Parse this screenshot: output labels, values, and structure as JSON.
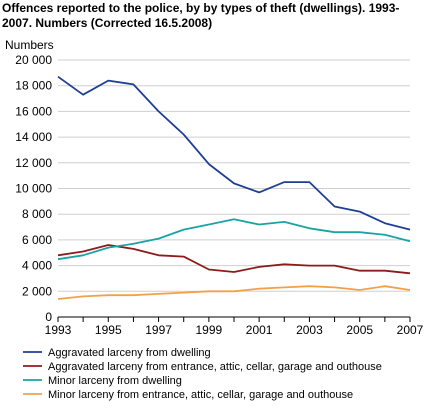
{
  "chart_data": {
    "type": "line",
    "title": "Offences reported to the police, by by types of theft (dwellings). 1993-2007. Numbers (Corrected 16.5.2008)",
    "ylabel": "Numbers",
    "xlabel": "",
    "x": [
      1993,
      1994,
      1995,
      1996,
      1997,
      1998,
      1999,
      2000,
      2001,
      2002,
      2003,
      2004,
      2005,
      2006,
      2007
    ],
    "x_tick_labels": [
      "1993",
      "1995",
      "1997",
      "1999",
      "2001",
      "2003",
      "2005",
      "2007"
    ],
    "y_tick_labels": [
      "0",
      "2 000",
      "4 000",
      "6 000",
      "8 000",
      "10 000",
      "12 000",
      "14 000",
      "16 000",
      "18 000",
      "20 000"
    ],
    "ylim": [
      0,
      20000
    ],
    "grid": true,
    "legend_position": "bottom",
    "series": [
      {
        "name": "Aggravated larceny from dwelling",
        "color": "#1f3f95",
        "values": [
          18700,
          17300,
          18400,
          18100,
          16000,
          14200,
          11900,
          10400,
          9700,
          10500,
          10500,
          8600,
          8200,
          7300,
          6800
        ]
      },
      {
        "name": "Aggravated larceny from entrance, attic, cellar, garage and outhouse",
        "color": "#8e1b1b",
        "values": [
          4800,
          5100,
          5600,
          5300,
          4800,
          4700,
          3700,
          3500,
          3900,
          4100,
          4000,
          4000,
          3600,
          3600,
          3400
        ]
      },
      {
        "name": "Minor larceny from dwelling",
        "color": "#1aa3a3",
        "values": [
          4500,
          4800,
          5400,
          5700,
          6100,
          6800,
          7200,
          7600,
          7200,
          7400,
          6900,
          6600,
          6600,
          6400,
          5900
        ]
      },
      {
        "name": "Minor larceny from entrance, attic, cellar, garage and outhouse",
        "color": "#f2a14a",
        "values": [
          1400,
          1600,
          1700,
          1700,
          1800,
          1900,
          2000,
          2000,
          2200,
          2300,
          2400,
          2300,
          2100,
          2400,
          2100
        ]
      }
    ]
  }
}
